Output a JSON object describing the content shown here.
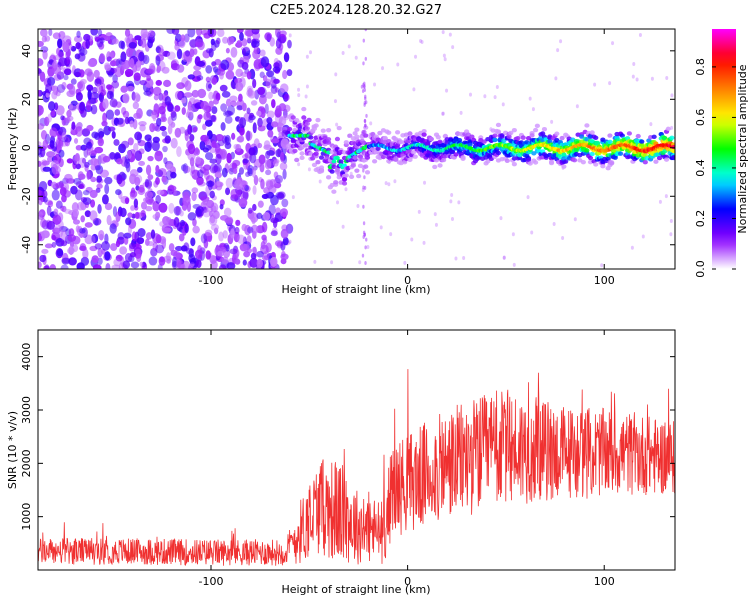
{
  "title": "C2E5.2024.128.20.32.G27",
  "chart_data": [
    {
      "id": "spectrogram",
      "type": "heatmap",
      "xlabel": "Height of straight line (km)",
      "ylabel": "Frequency (Hz)",
      "xlim": [
        -188,
        136
      ],
      "ylim": [
        -50,
        49
      ],
      "xticks": [
        -100,
        0,
        100
      ],
      "yticks": [
        -40,
        -20,
        0,
        20,
        40
      ],
      "colorbar": {
        "label": "Normalized spectral amplitude",
        "range": [
          0,
          0.95
        ],
        "ticks": [
          0.0,
          0.2,
          0.4,
          0.6,
          0.8
        ],
        "tick_labels": [
          "0.0",
          "0.2",
          "0.4",
          "0.6",
          "0.8"
        ],
        "colormap": [
          "#ffffff",
          "#8b00ff",
          "#0000ff",
          "#00ffff",
          "#00ff00",
          "#ffff00",
          "#ff8000",
          "#ff0000",
          "#ff00ff"
        ]
      },
      "regions": [
        {
          "x_range": [
            -188,
            -60
          ],
          "description_level": "broadband noise",
          "freq_range": [
            -50,
            49
          ],
          "amplitude": 0.1
        },
        {
          "x_range": [
            -60,
            -20
          ],
          "center_frequency": [
            5,
            0,
            -5,
            -8,
            -3
          ],
          "amplitude": 0.35
        },
        {
          "x_range": [
            -20,
            136
          ],
          "center_frequency": [
            0,
            0,
            0,
            0
          ],
          "amplitude": 0.85
        }
      ]
    },
    {
      "id": "snr",
      "type": "line",
      "xlabel": "Height of straight line (km)",
      "ylabel": "SNR (10 * v/v)",
      "xlim": [
        -188,
        136
      ],
      "ylim": [
        0,
        4500
      ],
      "xticks": [
        -100,
        0,
        100
      ],
      "yticks": [
        1000,
        2000,
        3000,
        4000
      ],
      "color": "#f03030",
      "envelope": [
        {
          "x": -188,
          "mean": 350,
          "spread": 250
        },
        {
          "x": -150,
          "mean": 350,
          "spread": 250
        },
        {
          "x": -100,
          "mean": 330,
          "spread": 250
        },
        {
          "x": -62,
          "mean": 330,
          "spread": 250
        },
        {
          "x": -55,
          "mean": 700,
          "spread": 600
        },
        {
          "x": -45,
          "mean": 1200,
          "spread": 900
        },
        {
          "x": -35,
          "mean": 1100,
          "spread": 1000
        },
        {
          "x": -25,
          "mean": 800,
          "spread": 700
        },
        {
          "x": -12,
          "mean": 700,
          "spread": 600
        },
        {
          "x": -8,
          "mean": 1500,
          "spread": 900
        },
        {
          "x": 10,
          "mean": 1800,
          "spread": 1000
        },
        {
          "x": 30,
          "mean": 2100,
          "spread": 1100
        },
        {
          "x": 50,
          "mean": 2300,
          "spread": 1100
        },
        {
          "x": 80,
          "mean": 2200,
          "spread": 900
        },
        {
          "x": 110,
          "mean": 2200,
          "spread": 800
        },
        {
          "x": 136,
          "mean": 2100,
          "spread": 700
        }
      ]
    }
  ]
}
